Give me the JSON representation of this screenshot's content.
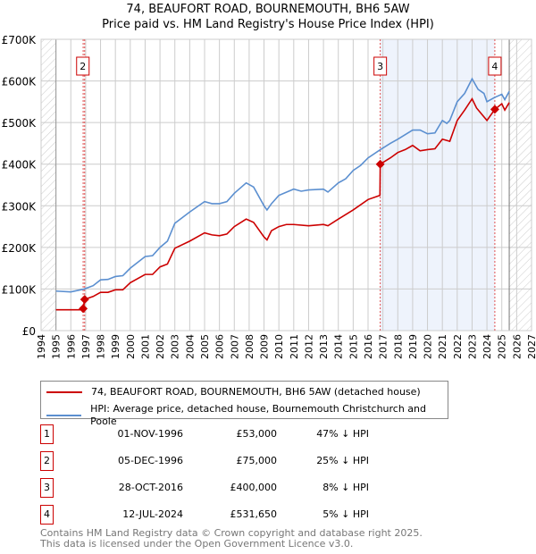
{
  "title": "74, BEAUFORT ROAD, BOURNEMOUTH, BH6 5AW",
  "subtitle": "Price paid vs. HM Land Registry's House Price Index (HPI)",
  "chart_data": {
    "type": "line",
    "xlim": [
      1994,
      2027
    ],
    "ylim": [
      0,
      700000
    ],
    "x_ticks": [
      "1994",
      "1995",
      "1996",
      "1997",
      "1998",
      "1999",
      "2000",
      "2001",
      "2002",
      "2003",
      "2004",
      "2005",
      "2006",
      "2007",
      "2008",
      "2009",
      "2010",
      "2011",
      "2012",
      "2013",
      "2014",
      "2015",
      "2016",
      "2017",
      "2018",
      "2019",
      "2020",
      "2021",
      "2022",
      "2023",
      "2024",
      "2025",
      "2026",
      "2027"
    ],
    "y_ticks": [
      {
        "v": 0,
        "label": "£0"
      },
      {
        "v": 100000,
        "label": "£100K"
      },
      {
        "v": 200000,
        "label": "£200K"
      },
      {
        "v": 300000,
        "label": "£300K"
      },
      {
        "v": 400000,
        "label": "£400K"
      },
      {
        "v": 500000,
        "label": "£500K"
      },
      {
        "v": 600000,
        "label": "£600K"
      },
      {
        "v": 700000,
        "label": "£700K"
      }
    ],
    "shaded_range": [
      2016.82,
      2024.53
    ],
    "hatched_before": 1995,
    "hatched_after": 2025.5,
    "series": [
      {
        "name": "74, BEAUFORT ROAD, BOURNEMOUTH, BH6 5AW (detached house)",
        "color": "#cc0000",
        "x": [
          1995,
          1996.83,
          1996.84,
          1996.92,
          1997.5,
          1998,
          1998.5,
          1999,
          1999.5,
          2000,
          2001,
          2001.5,
          2002,
          2002.5,
          2003,
          2004,
          2005,
          2005.5,
          2006,
          2006.5,
          2007,
          2007.8,
          2008.3,
          2009,
          2009.2,
          2009.5,
          2010,
          2010.5,
          2011,
          2012,
          2013,
          2013.3,
          2014,
          2015,
          2016,
          2016.8,
          2016.82,
          2017.5,
          2018,
          2018.5,
          2019,
          2019.5,
          2020,
          2020.5,
          2021,
          2021.5,
          2022,
          2022.5,
          2023,
          2023.3,
          2024,
          2024.53,
          2025,
          2025.2,
          2025.5
        ],
        "y": [
          50000,
          50000,
          53000,
          75000,
          82000,
          92000,
          92000,
          98000,
          98000,
          115000,
          135000,
          135000,
          153000,
          160000,
          198000,
          215000,
          235000,
          230000,
          228000,
          232000,
          250000,
          268000,
          260000,
          225000,
          218000,
          240000,
          250000,
          255000,
          255000,
          252000,
          255000,
          252000,
          268000,
          290000,
          315000,
          325000,
          400000,
          415000,
          428000,
          435000,
          445000,
          432000,
          435000,
          437000,
          460000,
          455000,
          505000,
          530000,
          557000,
          535000,
          505000,
          531650,
          545000,
          530000,
          548000
        ]
      },
      {
        "name": "HPI: Average price, detached house, Bournemouth Christchurch and Poole",
        "color": "#5b8fd0",
        "x": [
          1995,
          1996,
          1996.9,
          1997.5,
          1998,
          1998.5,
          1999,
          1999.5,
          2000,
          2001,
          2001.5,
          2002,
          2002.5,
          2003,
          2004,
          2005,
          2005.5,
          2006,
          2006.5,
          2007,
          2007.8,
          2008.3,
          2009,
          2009.2,
          2009.5,
          2010,
          2011,
          2011.5,
          2012,
          2013,
          2013.3,
          2014,
          2014.5,
          2015,
          2015.5,
          2016,
          2016.83,
          2017.5,
          2018,
          2019,
          2019.5,
          2020,
          2020.5,
          2021,
          2021.3,
          2021.5,
          2022,
          2022.5,
          2023,
          2023.4,
          2023.8,
          2024,
          2024.5,
          2025,
          2025.2,
          2025.5
        ],
        "y": [
          95000,
          93000,
          100000,
          108000,
          122000,
          123000,
          130000,
          132000,
          150000,
          178000,
          180000,
          200000,
          215000,
          258000,
          285000,
          310000,
          305000,
          305000,
          310000,
          330000,
          355000,
          345000,
          300000,
          290000,
          305000,
          325000,
          340000,
          335000,
          338000,
          340000,
          333000,
          355000,
          365000,
          385000,
          397000,
          415000,
          435000,
          450000,
          460000,
          482000,
          482000,
          473000,
          475000,
          505000,
          498000,
          505000,
          550000,
          570000,
          605000,
          580000,
          570000,
          550000,
          560000,
          568000,
          555000,
          575000
        ]
      }
    ],
    "sales": [
      {
        "n": "1",
        "x": 1996.83,
        "y": 53000
      },
      {
        "n": "2",
        "x": 1996.93,
        "y": 75000
      },
      {
        "n": "3",
        "x": 2016.82,
        "y": 400000
      },
      {
        "n": "4",
        "x": 2024.53,
        "y": 531650
      }
    ]
  },
  "legend": [
    "74, BEAUFORT ROAD, BOURNEMOUTH, BH6 5AW (detached house)",
    "HPI: Average price, detached house, Bournemouth Christchurch and Poole"
  ],
  "table": [
    {
      "n": "1",
      "date": "01-NOV-1996",
      "price": "£53,000",
      "hpi": "47% ↓ HPI"
    },
    {
      "n": "2",
      "date": "05-DEC-1996",
      "price": "£75,000",
      "hpi": "25% ↓ HPI"
    },
    {
      "n": "3",
      "date": "28-OCT-2016",
      "price": "£400,000",
      "hpi": "8% ↓ HPI"
    },
    {
      "n": "4",
      "date": "12-JUL-2024",
      "price": "£531,650",
      "hpi": "5% ↓ HPI"
    }
  ],
  "footer": [
    "Contains HM Land Registry data © Crown copyright and database right 2025.",
    "This data is licensed under the Open Government Licence v3.0."
  ]
}
